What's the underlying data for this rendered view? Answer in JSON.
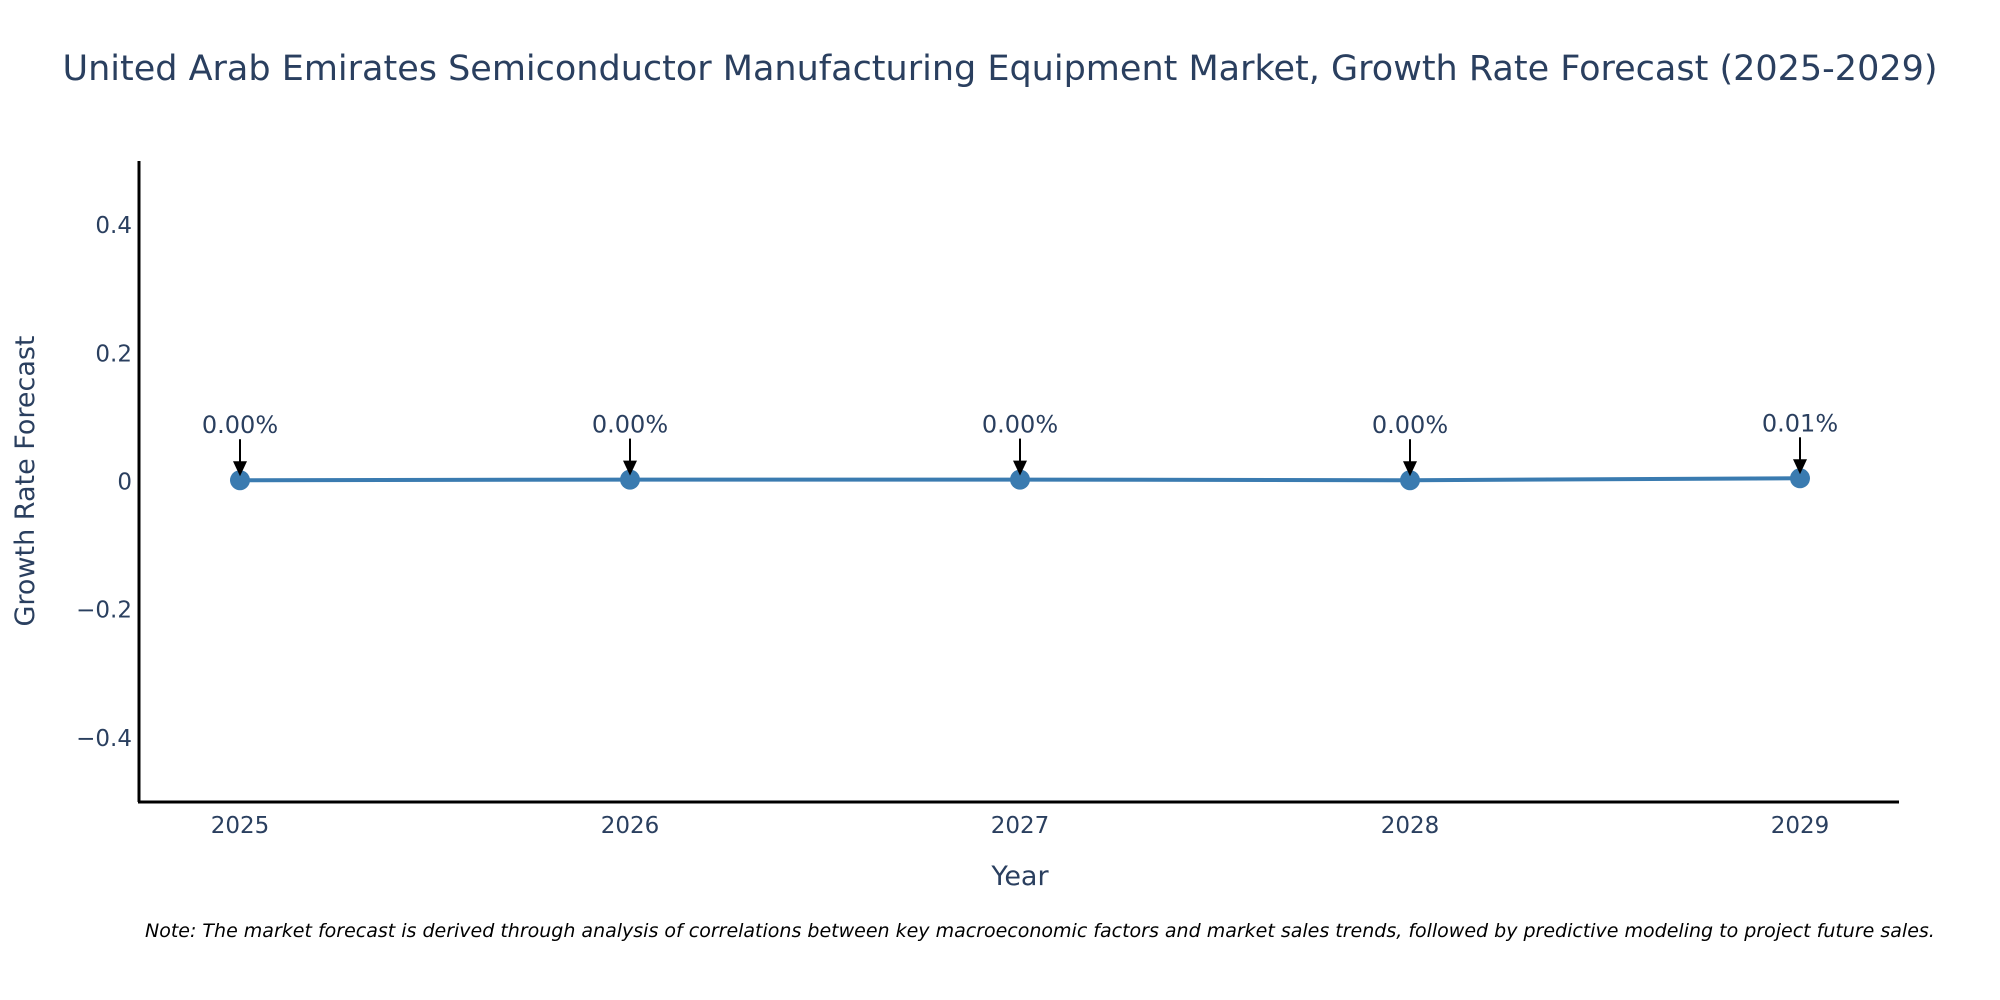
{
  "chart_data": {
    "type": "line",
    "title": "United Arab Emirates Semiconductor Manufacturing Equipment Market, Growth Rate Forecast (2025-2029)",
    "xlabel": "Year",
    "ylabel": "Growth Rate Forecast",
    "categories": [
      "2025",
      "2026",
      "2027",
      "2028",
      "2029"
    ],
    "values": [
      0.002,
      0.003,
      0.003,
      0.002,
      0.005
    ],
    "data_labels": [
      "0.00%",
      "0.00%",
      "0.00%",
      "0.00%",
      "0.01%"
    ],
    "ylim": [
      -0.5,
      0.5
    ],
    "yticks": [
      0.4,
      0.2,
      0,
      -0.2,
      -0.4
    ],
    "ytick_labels": [
      "0.4",
      "0.2",
      "0",
      "−0.2",
      "−0.4"
    ],
    "grid": false,
    "legend": "none",
    "line_color": "#3a7bb0",
    "arrow_color": "#000000"
  },
  "note": "Note: The market forecast is derived through analysis of correlations between key macroeconomic factors and market sales trends, followed by predictive modeling to project future sales."
}
